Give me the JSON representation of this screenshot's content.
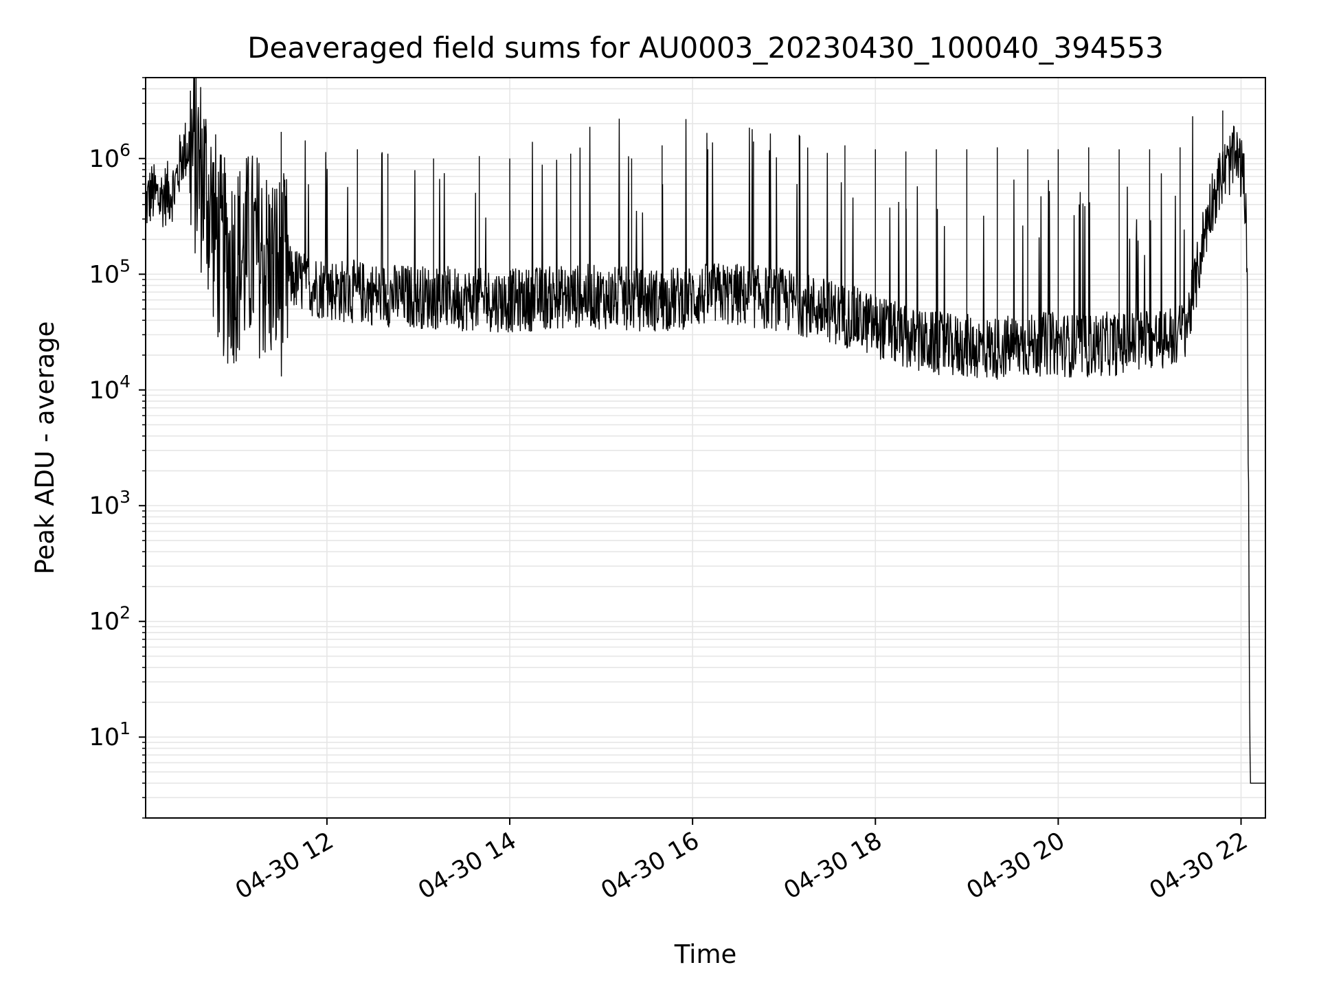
{
  "chart_data": {
    "type": "line",
    "title": "Deaveraged field sums for AU0003_20230430_100040_394553",
    "xlabel": "Time",
    "ylabel": "Peak ADU - average",
    "y_scale": "log",
    "ylim": [
      2,
      5000000
    ],
    "xlim": [
      "2023-04-30T10:01",
      "2023-04-30T22:16"
    ],
    "grid": true,
    "legend": "none",
    "colors": {
      "line": "#000000",
      "grid": "#e6e6e6",
      "axes": "#000000",
      "background": "#ffffff"
    },
    "x_ticks": [
      {
        "value": "2023-04-30T12:00",
        "label": "04-30 12"
      },
      {
        "value": "2023-04-30T14:00",
        "label": "04-30 14"
      },
      {
        "value": "2023-04-30T16:00",
        "label": "04-30 16"
      },
      {
        "value": "2023-04-30T18:00",
        "label": "04-30 18"
      },
      {
        "value": "2023-04-30T20:00",
        "label": "04-30 20"
      },
      {
        "value": "2023-04-30T22:00",
        "label": "04-30 22"
      }
    ],
    "y_ticks": [
      {
        "value": 10,
        "base": "10",
        "exp": "1"
      },
      {
        "value": 100,
        "base": "10",
        "exp": "2"
      },
      {
        "value": 1000,
        "base": "10",
        "exp": "3"
      },
      {
        "value": 10000,
        "base": "10",
        "exp": "4"
      },
      {
        "value": 100000,
        "base": "10",
        "exp": "5"
      },
      {
        "value": 1000000,
        "base": "10",
        "exp": "6"
      }
    ],
    "series": [
      {
        "x": [
          "2023-04-30T10:01",
          "2023-04-30T10:05",
          "2023-04-30T10:10",
          "2023-04-30T10:15",
          "2023-04-30T10:20",
          "2023-04-30T10:25",
          "2023-04-30T10:30",
          "2023-04-30T10:35",
          "2023-04-30T10:40",
          "2023-04-30T10:45",
          "2023-04-30T10:50",
          "2023-04-30T10:55",
          "2023-04-30T11:00",
          "2023-04-30T11:05",
          "2023-04-30T11:10",
          "2023-04-30T11:15",
          "2023-04-30T11:20",
          "2023-04-30T11:25",
          "2023-04-30T11:30",
          "2023-04-30T11:35",
          "2023-04-30T11:40",
          "2023-04-30T11:45",
          "2023-04-30T11:50",
          "2023-04-30T11:55",
          "2023-04-30T12:00",
          "2023-04-30T12:10",
          "2023-04-30T12:20",
          "2023-04-30T12:30",
          "2023-04-30T12:40",
          "2023-04-30T12:50",
          "2023-04-30T13:00",
          "2023-04-30T13:10",
          "2023-04-30T13:20",
          "2023-04-30T13:30",
          "2023-04-30T13:40",
          "2023-04-30T13:50",
          "2023-04-30T14:00",
          "2023-04-30T14:10",
          "2023-04-30T14:20",
          "2023-04-30T14:30",
          "2023-04-30T14:40",
          "2023-04-30T14:50",
          "2023-04-30T15:00",
          "2023-04-30T15:10",
          "2023-04-30T15:20",
          "2023-04-30T15:30",
          "2023-04-30T15:40",
          "2023-04-30T15:50",
          "2023-04-30T16:00",
          "2023-04-30T16:10",
          "2023-04-30T16:20",
          "2023-04-30T16:30",
          "2023-04-30T16:40",
          "2023-04-30T16:50",
          "2023-04-30T17:00",
          "2023-04-30T17:10",
          "2023-04-30T17:20",
          "2023-04-30T17:30",
          "2023-04-30T17:40",
          "2023-04-30T17:50",
          "2023-04-30T18:00",
          "2023-04-30T18:10",
          "2023-04-30T18:20",
          "2023-04-30T18:30",
          "2023-04-30T18:40",
          "2023-04-30T18:50",
          "2023-04-30T19:00",
          "2023-04-30T19:10",
          "2023-04-30T19:20",
          "2023-04-30T19:30",
          "2023-04-30T19:40",
          "2023-04-30T19:50",
          "2023-04-30T20:00",
          "2023-04-30T20:10",
          "2023-04-30T20:20",
          "2023-04-30T20:30",
          "2023-04-30T20:40",
          "2023-04-30T20:50",
          "2023-04-30T21:00",
          "2023-04-30T21:10",
          "2023-04-30T21:20",
          "2023-04-30T21:25",
          "2023-04-30T21:30",
          "2023-04-30T21:35",
          "2023-04-30T21:40",
          "2023-04-30T21:45",
          "2023-04-30T21:50",
          "2023-04-30T21:55",
          "2023-04-30T21:58",
          "2023-04-30T22:00",
          "2023-04-30T22:02",
          "2023-04-30T22:04",
          "2023-04-30T22:06",
          "2023-04-30T22:10",
          "2023-04-30T22:16"
        ],
        "y": [
          400000,
          500000,
          450000,
          500000,
          550000,
          1100000,
          1300000,
          900000,
          600000,
          300000,
          150000,
          120000,
          130000,
          140000,
          160000,
          150000,
          120000,
          110000,
          100000,
          95000,
          90000,
          85000,
          80000,
          78000,
          75000,
          72000,
          70000,
          68000,
          66000,
          65000,
          64000,
          63000,
          62000,
          61000,
          60000,
          60000,
          59000,
          60000,
          62000,
          63000,
          64000,
          65000,
          63000,
          62000,
          61000,
          60000,
          60000,
          62000,
          64000,
          66000,
          68000,
          66000,
          64000,
          62000,
          60000,
          56000,
          52000,
          48000,
          44000,
          40000,
          36000,
          32000,
          28000,
          26000,
          25000,
          24000,
          24000,
          23000,
          23000,
          24000,
          24000,
          25000,
          25000,
          24000,
          24000,
          25000,
          25000,
          26000,
          27000,
          28000,
          30000,
          40000,
          80000,
          200000,
          400000,
          600000,
          800000,
          1000000,
          950000,
          850000,
          600000,
          150000,
          4,
          4,
          4
        ],
        "spikes": [
          {
            "x": "2023-04-30T11:30",
            "y": 1700000
          },
          {
            "x": "2023-04-30T12:20",
            "y": 1200000
          },
          {
            "x": "2023-04-30T12:40",
            "y": 1100000
          },
          {
            "x": "2023-04-30T13:10",
            "y": 1000000
          },
          {
            "x": "2023-04-30T13:40",
            "y": 1050000
          },
          {
            "x": "2023-04-30T14:00",
            "y": 1000000
          },
          {
            "x": "2023-04-30T14:40",
            "y": 1100000
          },
          {
            "x": "2023-04-30T15:20",
            "y": 1000000
          },
          {
            "x": "2023-04-30T15:40",
            "y": 1300000
          },
          {
            "x": "2023-04-30T16:10",
            "y": 1200000
          },
          {
            "x": "2023-04-30T16:40",
            "y": 1400000
          },
          {
            "x": "2023-04-30T17:10",
            "y": 1600000
          },
          {
            "x": "2023-04-30T17:40",
            "y": 1300000
          },
          {
            "x": "2023-04-30T18:00",
            "y": 1200000
          },
          {
            "x": "2023-04-30T18:20",
            "y": 1150000
          },
          {
            "x": "2023-04-30T18:40",
            "y": 1200000
          },
          {
            "x": "2023-04-30T19:00",
            "y": 1200000
          },
          {
            "x": "2023-04-30T19:20",
            "y": 1250000
          },
          {
            "x": "2023-04-30T19:40",
            "y": 1200000
          },
          {
            "x": "2023-04-30T20:00",
            "y": 1200000
          },
          {
            "x": "2023-04-30T20:20",
            "y": 1250000
          },
          {
            "x": "2023-04-30T20:40",
            "y": 1200000
          },
          {
            "x": "2023-04-30T21:00",
            "y": 1200000
          },
          {
            "x": "2023-04-30T21:20",
            "y": 1250000
          },
          {
            "x": "2023-04-30T21:48",
            "y": 2600000
          }
        ]
      }
    ]
  }
}
